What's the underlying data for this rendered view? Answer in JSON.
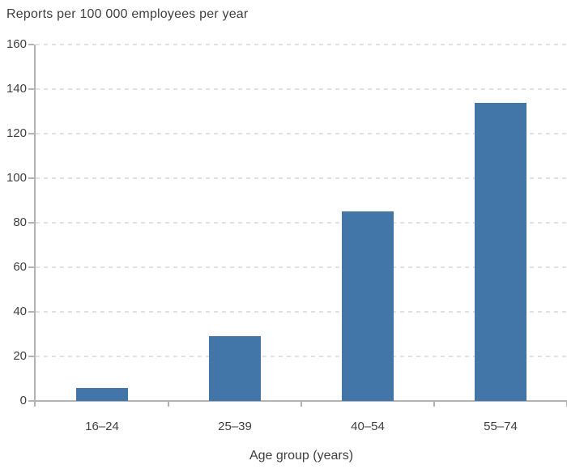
{
  "chart_data": {
    "type": "bar",
    "title": "Reports per 100 000 employees per year",
    "categories": [
      "16–24",
      "25–39",
      "40–54",
      "55–74"
    ],
    "values": [
      6,
      29,
      85,
      134
    ],
    "xlabel": "Age group (years)",
    "ylabel": "",
    "ylim": [
      0,
      160
    ],
    "yticks": [
      0,
      20,
      40,
      60,
      80,
      100,
      120,
      140,
      160
    ],
    "grid": "horizontal dashed",
    "legend": "none",
    "colors": {
      "bar": "#4276A8",
      "axis": "#B3B3B3",
      "grid": "#E1E1E1",
      "text": "#3F3F3F"
    }
  }
}
